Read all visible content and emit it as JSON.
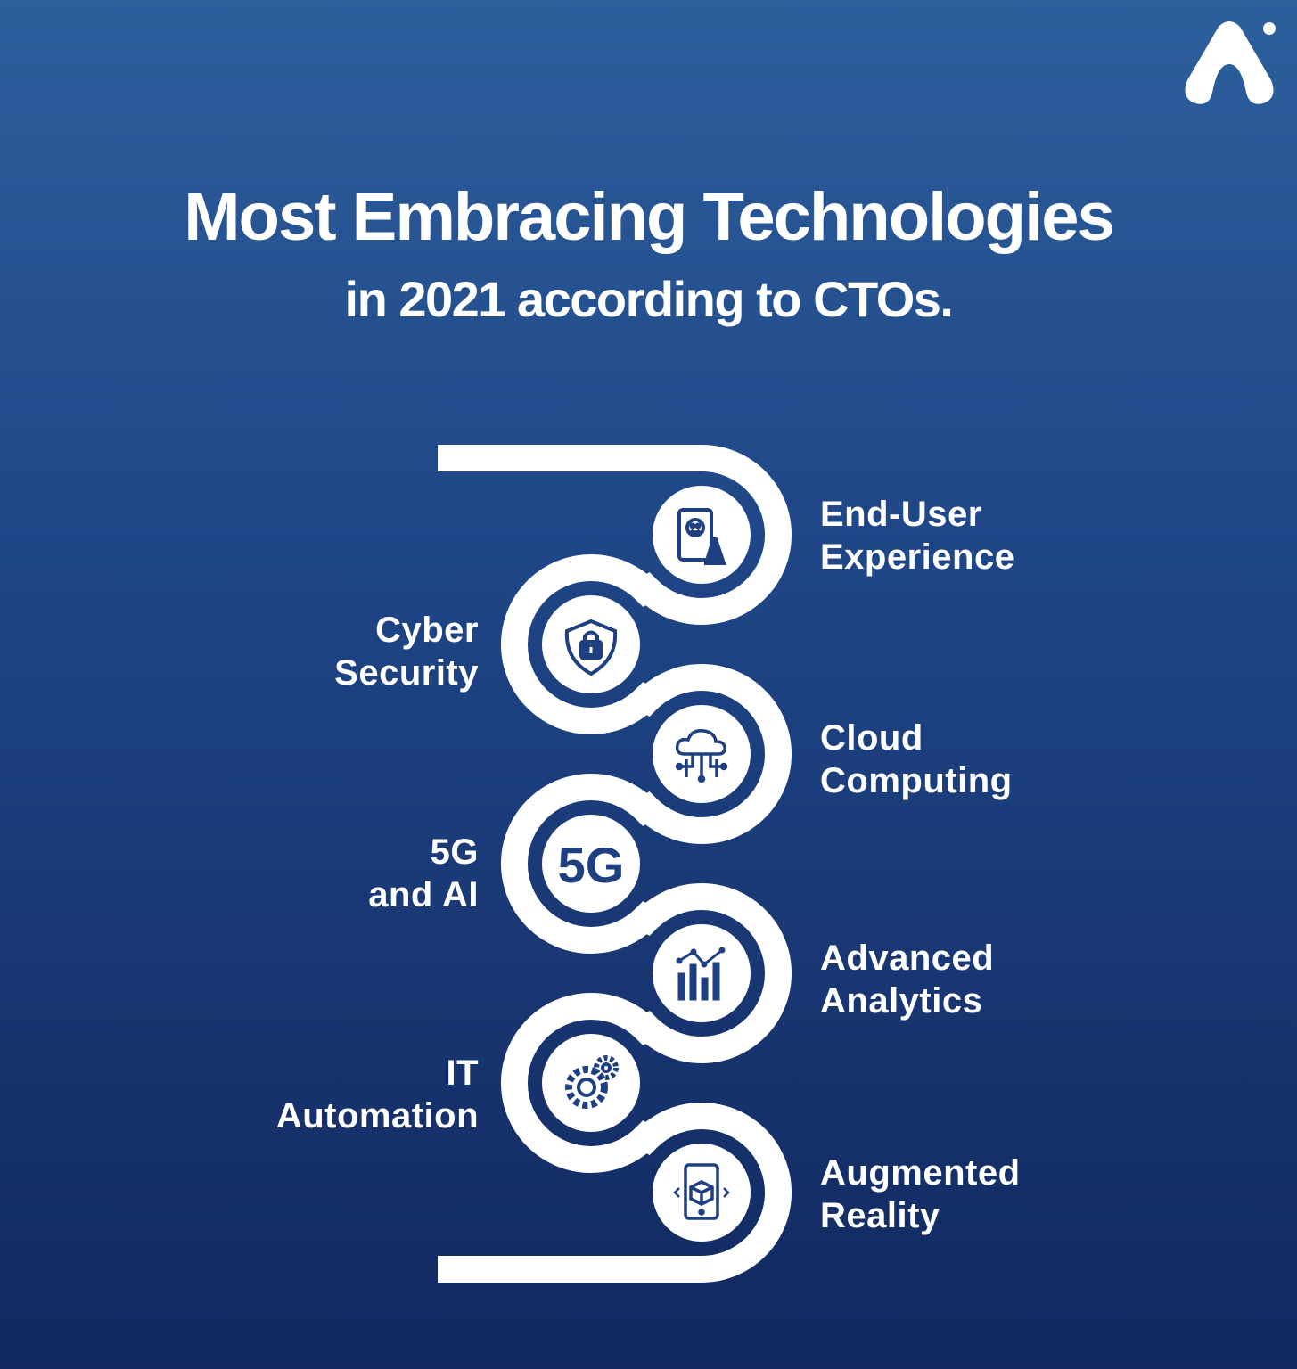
{
  "header": {
    "title": "Most Embracing Technologies",
    "subtitle": "in 2021 according to CTOs."
  },
  "logo": {
    "icon": "brand-a-logo"
  },
  "colors": {
    "background_top": "#2d5f9d",
    "background_bottom": "#12285f",
    "path": "#ffffff",
    "icon": "#1e3f80"
  },
  "items": [
    {
      "lines": [
        "End-User",
        "Experience"
      ],
      "icon": "phone-smiley-icon",
      "side": "right"
    },
    {
      "lines": [
        "Cyber",
        "Security"
      ],
      "icon": "shield-lock-icon",
      "side": "left"
    },
    {
      "lines": [
        "Cloud",
        "Computing"
      ],
      "icon": "cloud-network-icon",
      "side": "right"
    },
    {
      "lines": [
        "5G",
        "and AI"
      ],
      "icon": "5g-icon",
      "icon_text": "5G",
      "side": "left"
    },
    {
      "lines": [
        "Advanced",
        "Analytics"
      ],
      "icon": "bar-chart-icon",
      "side": "right"
    },
    {
      "lines": [
        "IT",
        "Automation"
      ],
      "icon": "gears-icon",
      "side": "left"
    },
    {
      "lines": [
        "Augmented",
        "Reality"
      ],
      "icon": "ar-phone-icon",
      "side": "right"
    }
  ]
}
